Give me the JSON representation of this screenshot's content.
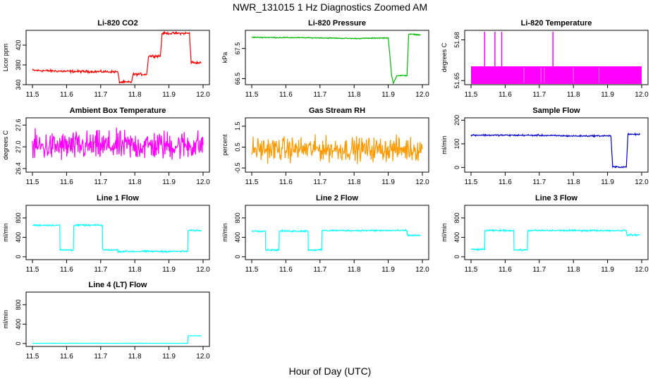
{
  "title": "NWR_131015  1 Hz Diagnostics Zoomed AM",
  "xlabel": "Hour of Day (UTC)",
  "x_ticks": [
    "11.5",
    "11.6",
    "11.7",
    "11.8",
    "11.9",
    "12.0"
  ],
  "chart_data": [
    {
      "type": "line",
      "title": "Li-820 CO2",
      "ylabel": "Licor ppm",
      "color": "#ff0000",
      "xlim": [
        11.5,
        12.0
      ],
      "ylim": [
        340,
        450
      ],
      "y_ticks": [
        "340",
        "380",
        "420"
      ],
      "series": [
        {
          "x": [
            11.5,
            11.6,
            11.75,
            11.755,
            11.79,
            11.795,
            11.835,
            11.84,
            11.875,
            11.88,
            11.955,
            11.96,
            11.965,
            11.995
          ],
          "y": [
            369,
            367,
            366,
            345,
            345,
            361,
            361,
            398,
            398,
            444,
            444,
            444,
            385,
            384
          ]
        }
      ],
      "noise": 1.5
    },
    {
      "type": "line",
      "title": "Li-820 Pressure",
      "ylabel": "kPa",
      "color": "#00bb00",
      "xlim": [
        11.5,
        12.0
      ],
      "ylim": [
        66.3,
        68.1
      ],
      "y_ticks": [
        "66.5",
        "67.5"
      ],
      "series": [
        {
          "x": [
            11.5,
            11.7,
            11.8,
            11.9,
            11.91,
            11.915,
            11.925,
            11.955,
            11.96,
            11.97,
            11.995
          ],
          "y": [
            67.87,
            67.85,
            67.83,
            67.85,
            66.6,
            66.35,
            66.6,
            66.6,
            67.97,
            67.97,
            67.95
          ]
        }
      ],
      "noise": 0.01
    },
    {
      "type": "line",
      "title": "Li-820 Temperature",
      "ylabel": "degrees C",
      "color": "#ff00ff",
      "xlim": [
        11.5,
        12.0
      ],
      "ylim": [
        51.647,
        51.687
      ],
      "y_ticks": [
        "51.65",
        "51.68"
      ],
      "band": [
        51.6475,
        51.6605
      ],
      "spikes": [
        11.54,
        11.57,
        11.59,
        11.74
      ],
      "spike_top": 51.686
    },
    {
      "type": "line",
      "title": "Ambient Box Temperature",
      "ylabel": "degrees C",
      "color": "#ff00ff",
      "xlim": [
        11.5,
        12.0
      ],
      "ylim": [
        26.3,
        27.8
      ],
      "y_ticks": [
        "26.4",
        "27.0",
        "27.6"
      ],
      "series": [
        {
          "x": [
            11.5,
            12.0
          ],
          "y": [
            27.0,
            27.05
          ]
        }
      ],
      "noise": 0.25
    },
    {
      "type": "line",
      "title": "Gas Stream RH",
      "ylabel": "percent",
      "color": "#ff9900",
      "xlim": [
        11.5,
        12.0
      ],
      "ylim": [
        -0.7,
        1.9
      ],
      "y_ticks": [
        "-0.5",
        "0.5",
        "1.5"
      ],
      "series": [
        {
          "x": [
            11.5,
            12.0
          ],
          "y": [
            0.4,
            0.4
          ]
        }
      ],
      "noise": 0.35
    },
    {
      "type": "line",
      "title": "Sample Flow",
      "ylabel": "ml/min",
      "color": "#0000cc",
      "xlim": [
        11.5,
        12.0
      ],
      "ylim": [
        -20,
        210
      ],
      "y_ticks": [
        "0",
        "100",
        "200"
      ],
      "series": [
        {
          "x": [
            11.5,
            11.7,
            11.8,
            11.91,
            11.915,
            11.955,
            11.96,
            11.995
          ],
          "y": [
            137,
            136,
            133,
            134,
            2,
            2,
            140,
            140
          ]
        }
      ],
      "noise": 2
    },
    {
      "type": "line",
      "title": "Line 1 Flow",
      "ylabel": "ml/min",
      "color": "#00ffff",
      "xlim": [
        11.5,
        12.0
      ],
      "ylim": [
        -60,
        1060
      ],
      "y_ticks": [
        "0",
        "400",
        "800"
      ],
      "series": [
        {
          "x": [
            11.5,
            11.58,
            11.581,
            11.62,
            11.621,
            11.705,
            11.706,
            11.75,
            11.751,
            11.955,
            11.956,
            11.995
          ],
          "y": [
            650,
            650,
            140,
            140,
            650,
            650,
            140,
            140,
            110,
            110,
            540,
            540
          ]
        }
      ],
      "noise": 10
    },
    {
      "type": "line",
      "title": "Line 2 Flow",
      "ylabel": "ml/min",
      "color": "#00ffff",
      "xlim": [
        11.5,
        12.0
      ],
      "ylim": [
        -60,
        1060
      ],
      "y_ticks": [
        "0",
        "400",
        "800"
      ],
      "series": [
        {
          "x": [
            11.5,
            11.54,
            11.541,
            11.58,
            11.581,
            11.665,
            11.666,
            11.705,
            11.706,
            11.955,
            11.956,
            11.995
          ],
          "y": [
            530,
            530,
            140,
            140,
            530,
            530,
            140,
            140,
            540,
            540,
            440,
            440
          ]
        }
      ],
      "noise": 10
    },
    {
      "type": "line",
      "title": "Line 3 Flow",
      "ylabel": "ml/min",
      "color": "#00ffff",
      "xlim": [
        11.5,
        12.0
      ],
      "ylim": [
        -60,
        1060
      ],
      "y_ticks": [
        "0",
        "400",
        "800"
      ],
      "series": [
        {
          "x": [
            11.5,
            11.54,
            11.541,
            11.625,
            11.626,
            11.665,
            11.666,
            11.955,
            11.956,
            11.995
          ],
          "y": [
            150,
            150,
            540,
            540,
            140,
            140,
            540,
            540,
            450,
            450
          ]
        }
      ],
      "noise": 10
    },
    {
      "type": "line",
      "title": "Line 4 (LT) Flow",
      "ylabel": "ml/min",
      "color": "#00ffff",
      "xlim": [
        11.5,
        12.0
      ],
      "ylim": [
        -60,
        1060
      ],
      "y_ticks": [
        "0",
        "400",
        "800"
      ],
      "series": [
        {
          "x": [
            11.5,
            11.955,
            11.956,
            11.995
          ],
          "y": [
            5,
            5,
            160,
            160
          ]
        }
      ],
      "noise": 2
    }
  ]
}
